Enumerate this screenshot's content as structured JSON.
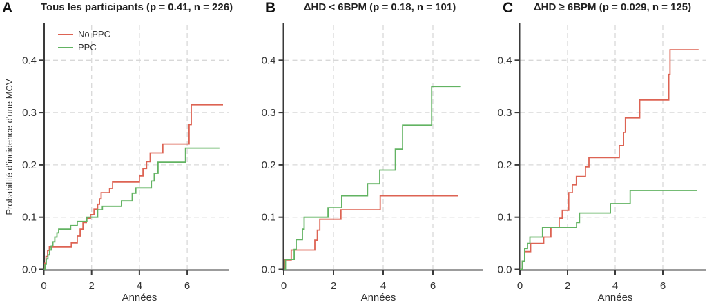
{
  "figure": {
    "background": "#ffffff",
    "axis_color": "#3a3a3a",
    "grid_color": "#d8d8d8",
    "text_color": "#333333",
    "red": "#dd6353",
    "green": "#62b362"
  },
  "chart_data": [
    {
      "type": "line",
      "subtype": "kaplan-meier-step",
      "panel_label": "A",
      "title": "Tous les participants (p = 0.41, n = 226)",
      "xlabel": "Années",
      "ylabel": "Probabilité d'incidence d'une MCV",
      "xlim": [
        0,
        7.8
      ],
      "ylim": [
        0,
        0.46
      ],
      "xticks": [
        0,
        2,
        4,
        6
      ],
      "xtick_labels": [
        "0",
        "2",
        "4",
        "6"
      ],
      "yticks": [
        0,
        0.1,
        0.2,
        0.3,
        0.4
      ],
      "ytick_labels": [
        "0.0",
        "0.1",
        "0.2",
        "0.3",
        "0.4"
      ],
      "grid": true,
      "legend_position": "top-left",
      "series": [
        {
          "name": "No PPC",
          "color": "#dd6353",
          "end_x": 7.5,
          "points": [
            [
              0,
              0
            ],
            [
              0.04,
              0.012
            ],
            [
              0.09,
              0.025
            ],
            [
              0.16,
              0.036
            ],
            [
              0.23,
              0.043
            ],
            [
              1.15,
              0.051
            ],
            [
              1.4,
              0.064
            ],
            [
              1.52,
              0.077
            ],
            [
              1.64,
              0.09
            ],
            [
              1.78,
              0.098
            ],
            [
              1.95,
              0.105
            ],
            [
              2.1,
              0.115
            ],
            [
              2.25,
              0.125
            ],
            [
              2.33,
              0.135
            ],
            [
              2.4,
              0.147
            ],
            [
              2.75,
              0.155
            ],
            [
              2.88,
              0.167
            ],
            [
              4.0,
              0.179
            ],
            [
              4.15,
              0.193
            ],
            [
              4.3,
              0.206
            ],
            [
              4.45,
              0.223
            ],
            [
              4.98,
              0.24
            ],
            [
              6.08,
              0.277
            ],
            [
              6.17,
              0.315
            ]
          ]
        },
        {
          "name": "PPC",
          "color": "#62b362",
          "end_x": 7.35,
          "points": [
            [
              0,
              0
            ],
            [
              0.05,
              0.01
            ],
            [
              0.1,
              0.02
            ],
            [
              0.17,
              0.028
            ],
            [
              0.24,
              0.037
            ],
            [
              0.31,
              0.045
            ],
            [
              0.38,
              0.053
            ],
            [
              0.46,
              0.062
            ],
            [
              0.55,
              0.07
            ],
            [
              0.62,
              0.077
            ],
            [
              1.12,
              0.084
            ],
            [
              1.4,
              0.092
            ],
            [
              1.8,
              0.1
            ],
            [
              2.25,
              0.114
            ],
            [
              2.45,
              0.121
            ],
            [
              3.25,
              0.131
            ],
            [
              3.7,
              0.146
            ],
            [
              3.85,
              0.156
            ],
            [
              4.5,
              0.169
            ],
            [
              4.62,
              0.184
            ],
            [
              4.78,
              0.205
            ],
            [
              5.93,
              0.232
            ]
          ]
        }
      ]
    },
    {
      "type": "line",
      "subtype": "kaplan-meier-step",
      "panel_label": "B",
      "title": "ΔHD < 6BPM (p = 0.18, n = 101)",
      "xlabel": "Années",
      "ylabel": "",
      "xlim": [
        0,
        8.0
      ],
      "ylim": [
        0,
        0.46
      ],
      "xticks": [
        0,
        2,
        4,
        6
      ],
      "xtick_labels": [
        "0",
        "2",
        "4",
        "6"
      ],
      "yticks": [
        0,
        0.1,
        0.2,
        0.3,
        0.4
      ],
      "ytick_labels": [
        "0.0",
        "0.1",
        "0.2",
        "0.3",
        "0.4"
      ],
      "grid": true,
      "legend_position": "none",
      "series": [
        {
          "name": "No PPC",
          "color": "#dd6353",
          "end_x": 7.0,
          "points": [
            [
              0,
              0
            ],
            [
              0.05,
              0.018
            ],
            [
              0.3,
              0.037
            ],
            [
              1.25,
              0.056
            ],
            [
              1.35,
              0.075
            ],
            [
              1.45,
              0.096
            ],
            [
              2.3,
              0.114
            ],
            [
              3.88,
              0.141
            ]
          ]
        },
        {
          "name": "PPC",
          "color": "#62b362",
          "end_x": 7.1,
          "points": [
            [
              0,
              0
            ],
            [
              0.07,
              0.019
            ],
            [
              0.42,
              0.038
            ],
            [
              0.5,
              0.057
            ],
            [
              0.75,
              0.077
            ],
            [
              0.82,
              0.1
            ],
            [
              1.78,
              0.118
            ],
            [
              2.33,
              0.141
            ],
            [
              3.37,
              0.164
            ],
            [
              3.86,
              0.19
            ],
            [
              4.49,
              0.23
            ],
            [
              4.78,
              0.276
            ],
            [
              5.95,
              0.35
            ]
          ]
        }
      ]
    },
    {
      "type": "line",
      "subtype": "kaplan-meier-step",
      "panel_label": "C",
      "title": "ΔHD ≥ 6BPM (p = 0.029, n = 125)",
      "xlabel": "Années",
      "ylabel": "",
      "xlim": [
        0,
        7.8
      ],
      "ylim": [
        0,
        0.46
      ],
      "xticks": [
        0,
        2,
        4,
        6
      ],
      "xtick_labels": [
        "0",
        "2",
        "4",
        "6"
      ],
      "yticks": [
        0,
        0.1,
        0.2,
        0.3,
        0.4
      ],
      "ytick_labels": [
        "0.0",
        "0.1",
        "0.2",
        "0.3",
        "0.4"
      ],
      "grid": true,
      "legend_position": "none",
      "series": [
        {
          "name": "No PPC",
          "color": "#dd6353",
          "end_x": 7.5,
          "points": [
            [
              0,
              0
            ],
            [
              0.1,
              0.016
            ],
            [
              0.2,
              0.034
            ],
            [
              0.45,
              0.05
            ],
            [
              1.0,
              0.062
            ],
            [
              1.3,
              0.08
            ],
            [
              1.65,
              0.098
            ],
            [
              1.78,
              0.113
            ],
            [
              2.05,
              0.147
            ],
            [
              2.2,
              0.162
            ],
            [
              2.37,
              0.178
            ],
            [
              2.75,
              0.196
            ],
            [
              2.9,
              0.214
            ],
            [
              4.17,
              0.237
            ],
            [
              4.35,
              0.262
            ],
            [
              4.43,
              0.29
            ],
            [
              5.03,
              0.324
            ],
            [
              6.25,
              0.373
            ],
            [
              6.3,
              0.42
            ]
          ]
        },
        {
          "name": "PPC",
          "color": "#62b362",
          "end_x": 7.45,
          "points": [
            [
              0,
              0
            ],
            [
              0.1,
              0.016
            ],
            [
              0.2,
              0.04
            ],
            [
              0.32,
              0.05
            ],
            [
              0.42,
              0.062
            ],
            [
              0.95,
              0.08
            ],
            [
              2.38,
              0.09
            ],
            [
              2.5,
              0.108
            ],
            [
              3.8,
              0.126
            ],
            [
              4.63,
              0.151
            ]
          ]
        }
      ]
    }
  ]
}
